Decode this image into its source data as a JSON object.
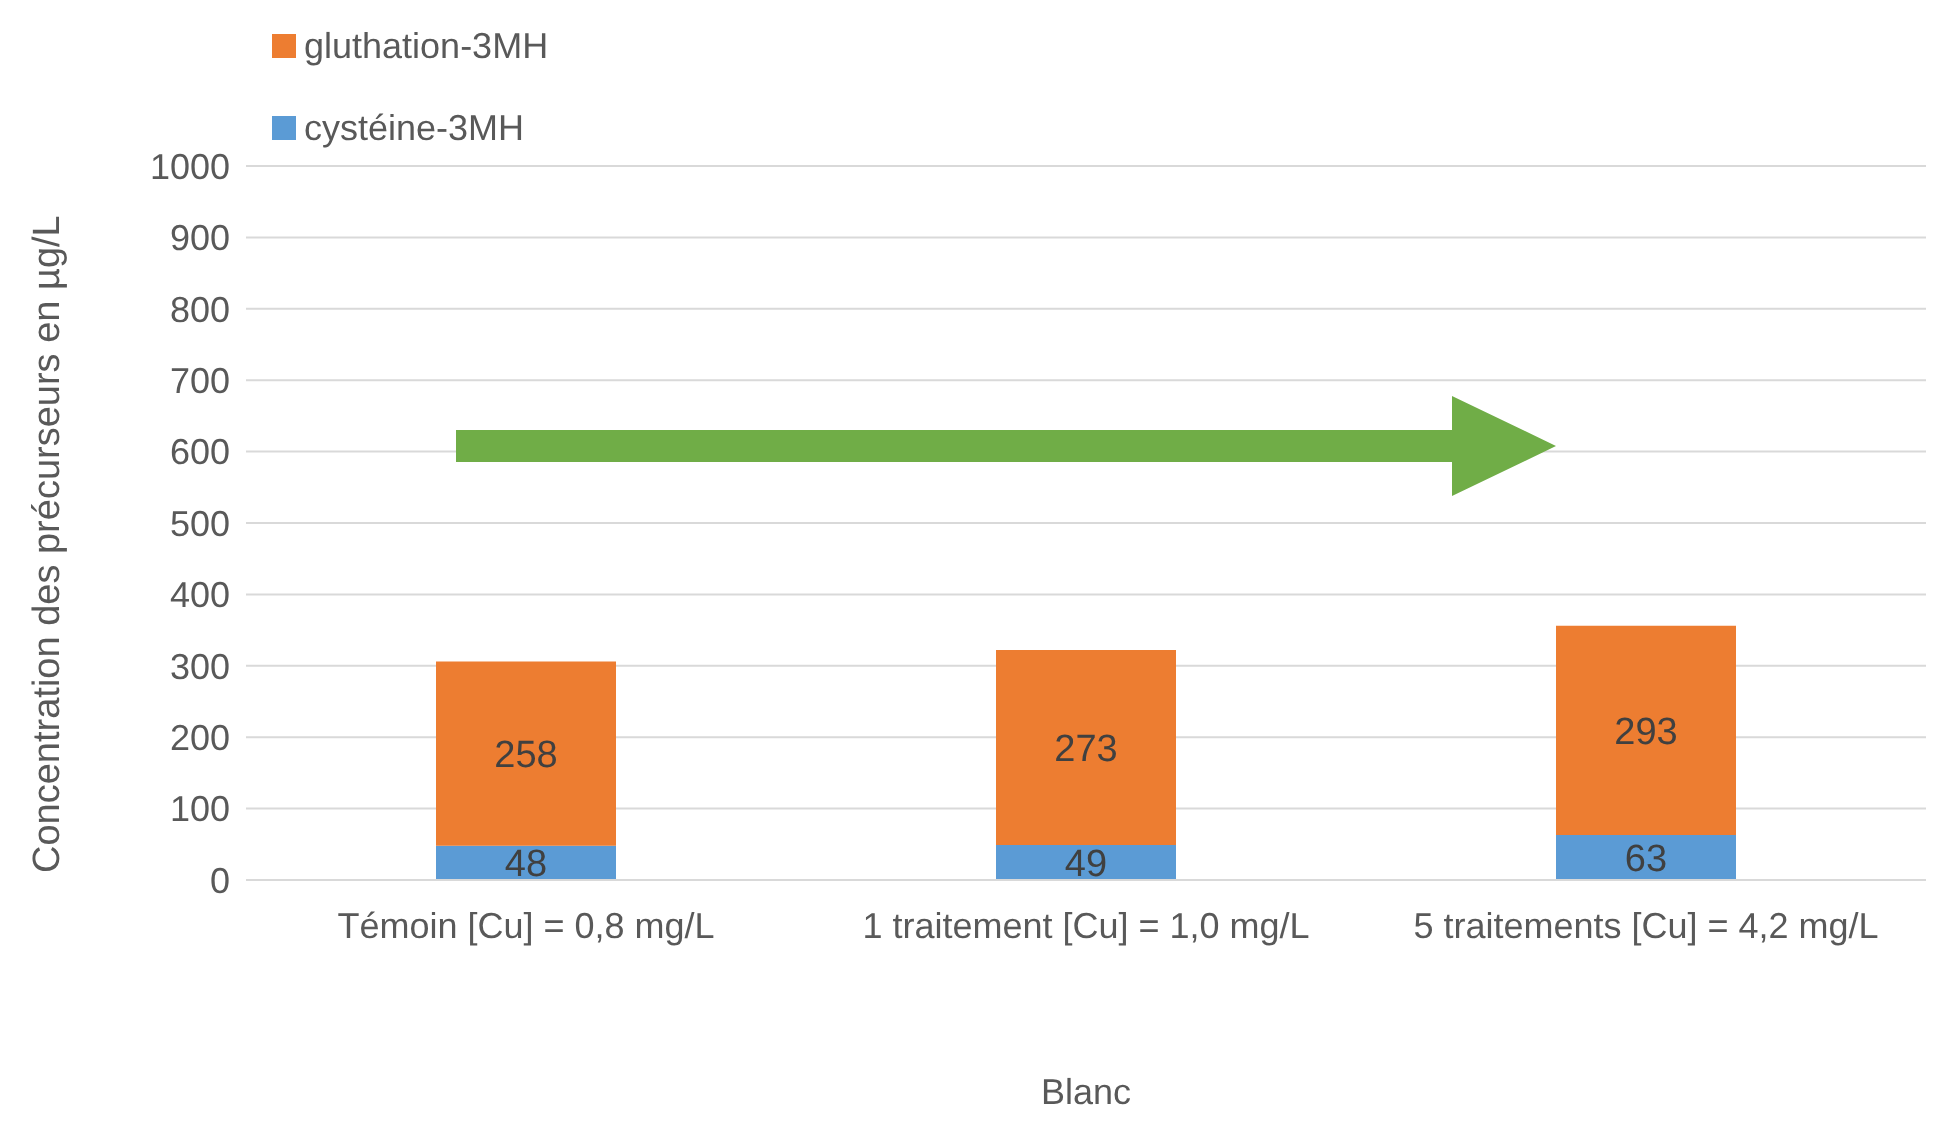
{
  "chart_data": {
    "type": "bar",
    "stacked": true,
    "ylabel": "Concentration des précurseurs en µg/L",
    "xlabel": "Blanc",
    "categories": [
      "Témoin [Cu] = 0,8 mg/L",
      "1 traitement  [Cu] = 1,0 mg/L",
      "5 traitements  [Cu] = 4,2 mg/L"
    ],
    "series": [
      {
        "name": "cystéine-3MH",
        "color": "#5b9bd5",
        "values": [
          48,
          49,
          63
        ]
      },
      {
        "name": "gluthation-3MH",
        "color": "#ed7d31",
        "values": [
          258,
          273,
          293
        ]
      }
    ],
    "ylim": [
      0,
      1000
    ],
    "yticks": [
      0,
      100,
      200,
      300,
      400,
      500,
      600,
      700,
      800,
      900,
      1000
    ],
    "grid": "y",
    "legend": "top left",
    "data_labels": true
  }
}
